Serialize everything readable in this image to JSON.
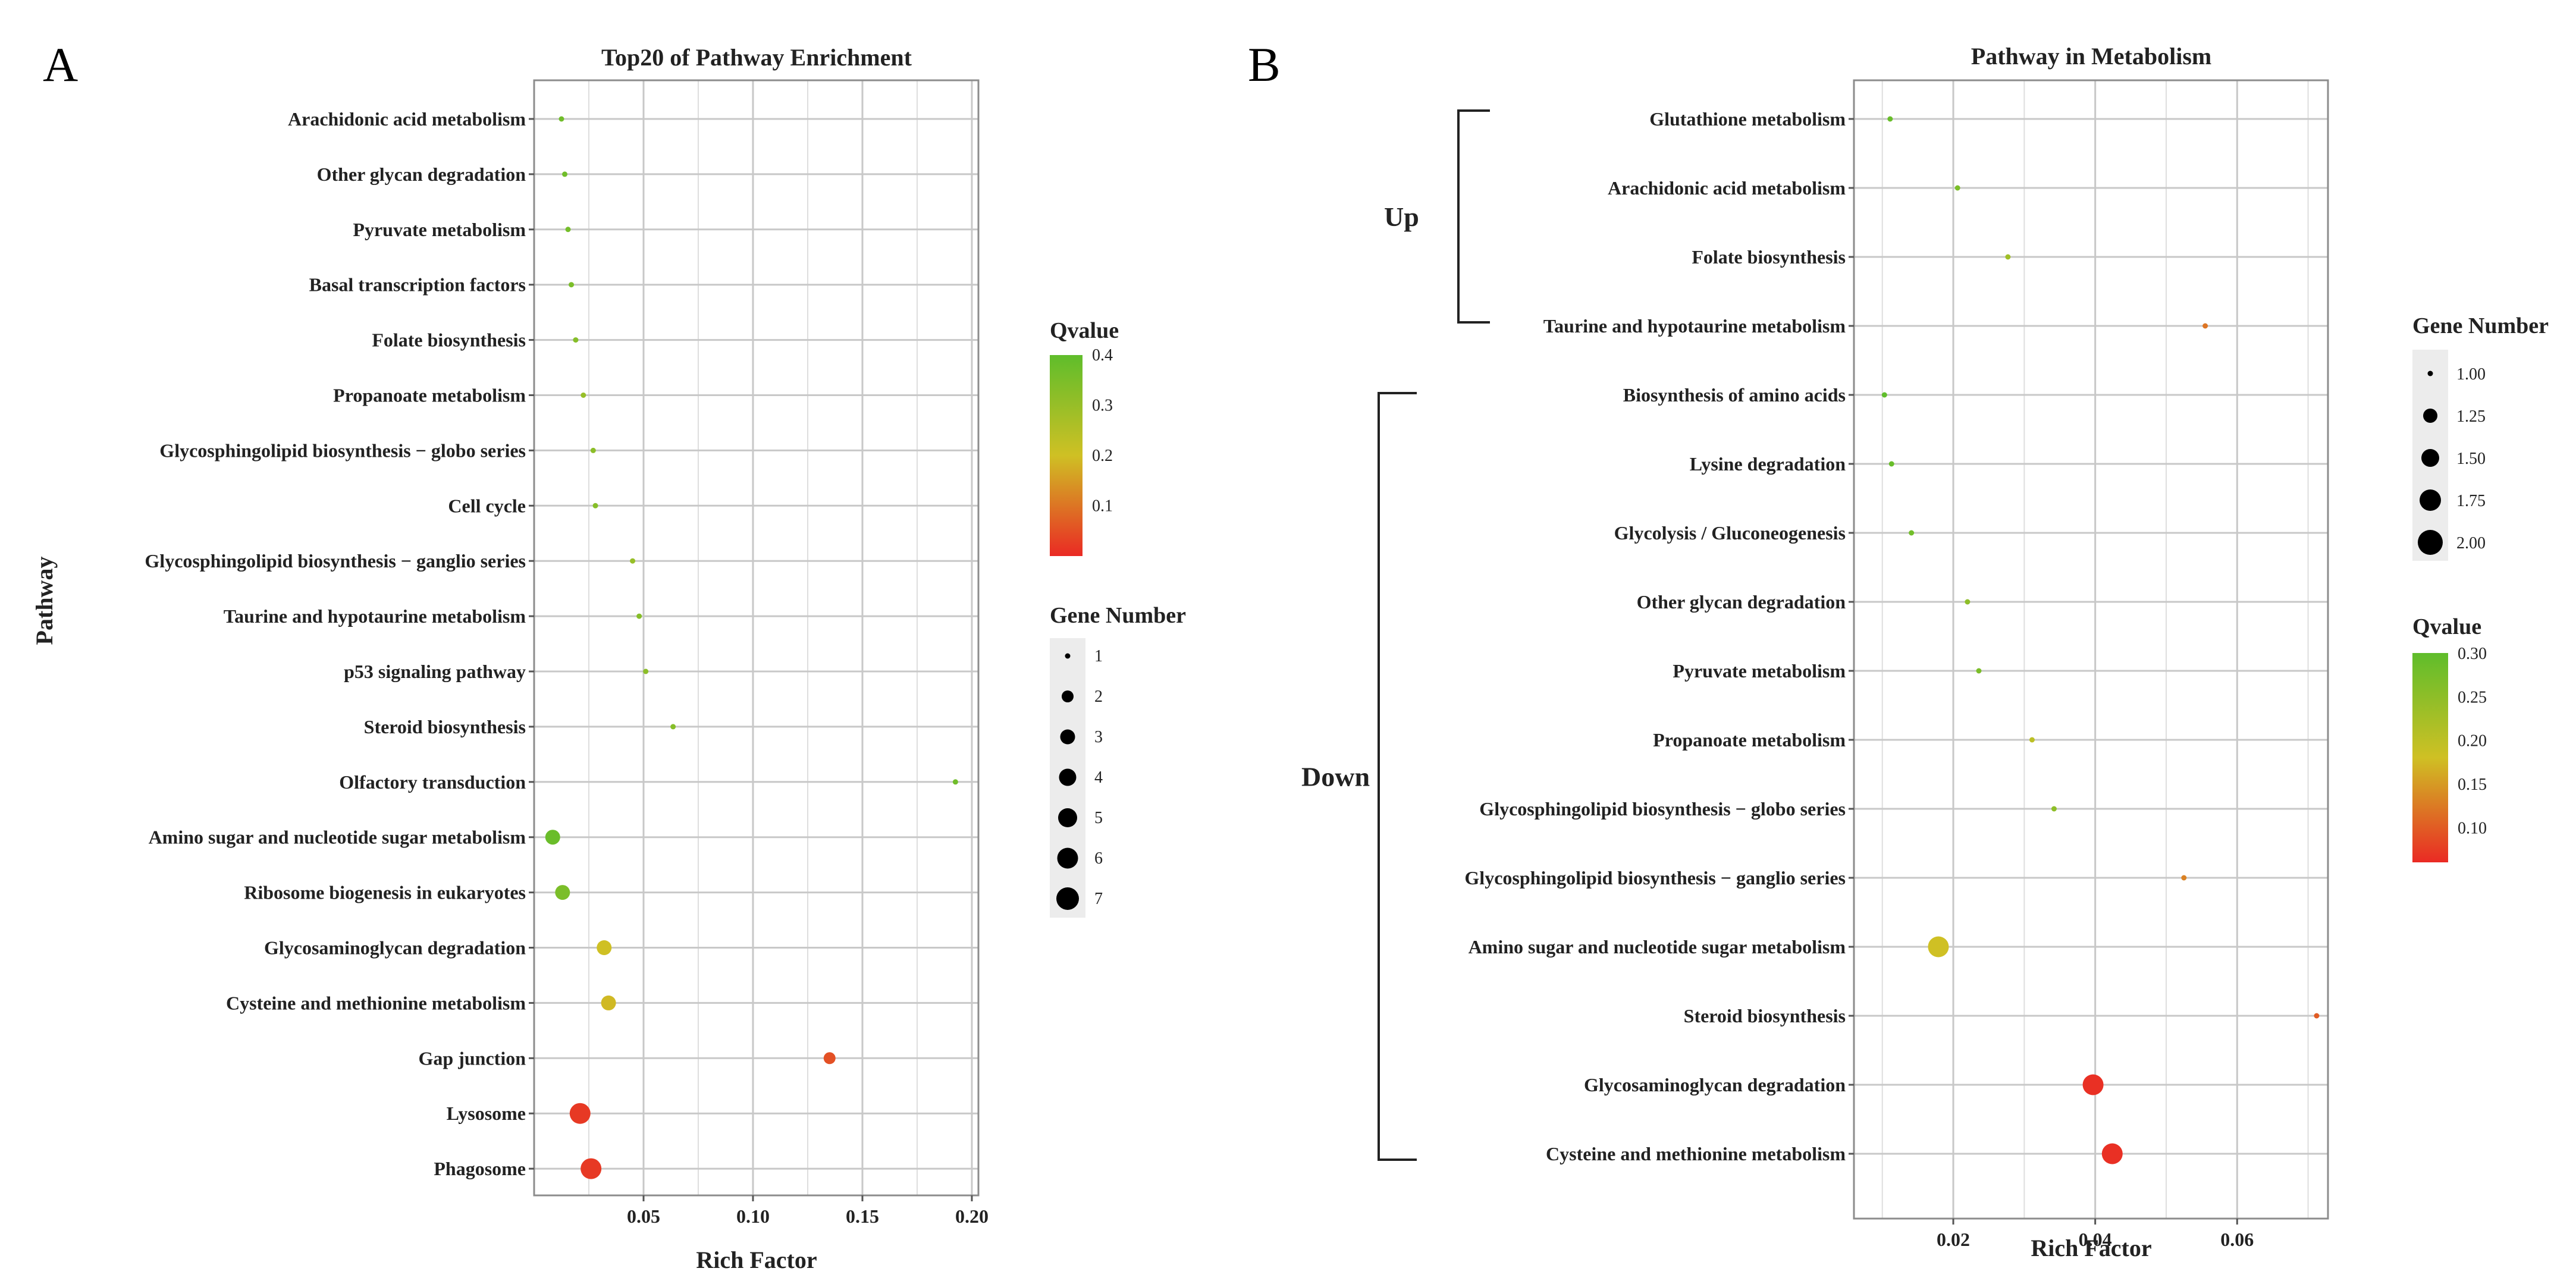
{
  "panel_labels": {
    "a": "A",
    "b": "B"
  },
  "colors": {
    "q_low": "#ea2a24",
    "q_mid": "#cfc024",
    "q_high": "#5fbd2b",
    "grid": "#c8c8c8",
    "frame": "#8c8c8c"
  },
  "chart_data": [
    {
      "id": "A",
      "type": "scatter",
      "title": "Top20 of Pathway Enrichment",
      "xlabel": "Rich Factor",
      "ylabel": "Pathway",
      "xlim": [
        0.0,
        0.203
      ],
      "xticks": [
        0.05,
        0.1,
        0.15,
        0.2
      ],
      "xtick_labels": [
        "0.05",
        "0.10",
        "0.15",
        "0.20"
      ],
      "grid": true,
      "color_legend": {
        "title": "Qvalue",
        "range": [
          0.0,
          0.4
        ],
        "ticks": [
          0.4,
          0.3,
          0.2,
          0.1
        ],
        "tick_labels": [
          "0.4",
          "0.3",
          "0.2",
          "0.1"
        ]
      },
      "size_legend": {
        "title": "Gene Number",
        "values": [
          1,
          2,
          3,
          4,
          5,
          6,
          7
        ],
        "labels": [
          "1",
          "2",
          "3",
          "4",
          "5",
          "6",
          "7"
        ]
      },
      "points": [
        {
          "pathway": "Arachidonic acid metabolism",
          "rich_factor": 0.0125,
          "gene_number": 1,
          "qvalue": 0.37
        },
        {
          "pathway": "Other glycan degradation",
          "rich_factor": 0.014,
          "gene_number": 1,
          "qvalue": 0.37
        },
        {
          "pathway": "Pyruvate metabolism",
          "rich_factor": 0.0155,
          "gene_number": 1,
          "qvalue": 0.36
        },
        {
          "pathway": "Basal transcription factors",
          "rich_factor": 0.017,
          "gene_number": 1,
          "qvalue": 0.35
        },
        {
          "pathway": "Folate biosynthesis",
          "rich_factor": 0.019,
          "gene_number": 1,
          "qvalue": 0.33
        },
        {
          "pathway": "Propanoate metabolism",
          "rich_factor": 0.0225,
          "gene_number": 1,
          "qvalue": 0.3
        },
        {
          "pathway": "Glycosphingolipid biosynthesis − globo series",
          "rich_factor": 0.027,
          "gene_number": 1,
          "qvalue": 0.32
        },
        {
          "pathway": "Cell cycle",
          "rich_factor": 0.028,
          "gene_number": 1,
          "qvalue": 0.33
        },
        {
          "pathway": "Glycosphingolipid biosynthesis − ganglio series",
          "rich_factor": 0.045,
          "gene_number": 1,
          "qvalue": 0.3
        },
        {
          "pathway": "Taurine and hypotaurine metabolism",
          "rich_factor": 0.048,
          "gene_number": 1,
          "qvalue": 0.33
        },
        {
          "pathway": "p53 signaling pathway",
          "rich_factor": 0.051,
          "gene_number": 1,
          "qvalue": 0.32
        },
        {
          "pathway": "Steroid biosynthesis",
          "rich_factor": 0.0635,
          "gene_number": 1,
          "qvalue": 0.33
        },
        {
          "pathway": "Olfactory transduction",
          "rich_factor": 0.1925,
          "gene_number": 1,
          "qvalue": 0.37
        },
        {
          "pathway": "Amino sugar and nucleotide sugar metabolism",
          "rich_factor": 0.0085,
          "gene_number": 3,
          "qvalue": 0.38
        },
        {
          "pathway": "Ribosome biogenesis in eukaryotes",
          "rich_factor": 0.013,
          "gene_number": 3,
          "qvalue": 0.35
        },
        {
          "pathway": "Glycosaminoglycan degradation",
          "rich_factor": 0.032,
          "gene_number": 3,
          "qvalue": 0.2
        },
        {
          "pathway": "Cysteine and methionine metabolism",
          "rich_factor": 0.034,
          "gene_number": 3,
          "qvalue": 0.19
        },
        {
          "pathway": "Gap junction",
          "rich_factor": 0.135,
          "gene_number": 2,
          "qvalue": 0.05
        },
        {
          "pathway": "Lysosome",
          "rich_factor": 0.021,
          "gene_number": 6,
          "qvalue": 0.02
        },
        {
          "pathway": "Phagosome",
          "rich_factor": 0.026,
          "gene_number": 6,
          "qvalue": 0.02
        }
      ]
    },
    {
      "id": "B",
      "type": "scatter",
      "title": "Pathway in Metabolism",
      "xlabel": "Rich Factor",
      "xlim": [
        0.006,
        0.0728
      ],
      "xticks": [
        0.02,
        0.04,
        0.06
      ],
      "xtick_labels": [
        "0.02",
        "0.04",
        "0.06"
      ],
      "grid": true,
      "groups": [
        {
          "label": "Up",
          "from": "Glutathione metabolism",
          "to": "Taurine and hypotaurine metabolism"
        },
        {
          "label": "Down",
          "from": "Biosynthesis of amino acids",
          "to": "Cysteine and methionine metabolism"
        }
      ],
      "size_legend": {
        "title": "Gene Number",
        "values": [
          1.0,
          1.25,
          1.5,
          1.75,
          2.0
        ],
        "labels": [
          "1.00",
          "1.25",
          "1.50",
          "1.75",
          "2.00"
        ]
      },
      "color_legend": {
        "title": "Qvalue",
        "range": [
          0.06,
          0.3
        ],
        "ticks": [
          0.3,
          0.25,
          0.2,
          0.15,
          0.1
        ],
        "tick_labels": [
          "0.30",
          "0.25",
          "0.20",
          "0.15",
          "0.10"
        ]
      },
      "points": [
        {
          "pathway": "Glutathione metabolism",
          "rich_factor": 0.0111,
          "gene_number": 1,
          "qvalue": 0.29
        },
        {
          "pathway": "Arachidonic acid metabolism",
          "rich_factor": 0.0206,
          "gene_number": 1,
          "qvalue": 0.27
        },
        {
          "pathway": "Folate biosynthesis",
          "rich_factor": 0.0277,
          "gene_number": 1,
          "qvalue": 0.23
        },
        {
          "pathway": "Taurine and hypotaurine metabolism",
          "rich_factor": 0.0555,
          "gene_number": 1,
          "qvalue": 0.12
        },
        {
          "pathway": "Biosynthesis of amino acids",
          "rich_factor": 0.0103,
          "gene_number": 1,
          "qvalue": 0.3
        },
        {
          "pathway": "Lysine degradation",
          "rich_factor": 0.0113,
          "gene_number": 1,
          "qvalue": 0.29
        },
        {
          "pathway": "Glycolysis / Gluconeogenesis",
          "rich_factor": 0.0141,
          "gene_number": 1,
          "qvalue": 0.28
        },
        {
          "pathway": "Other glycan degradation",
          "rich_factor": 0.022,
          "gene_number": 1,
          "qvalue": 0.25
        },
        {
          "pathway": "Pyruvate metabolism",
          "rich_factor": 0.0236,
          "gene_number": 1,
          "qvalue": 0.27
        },
        {
          "pathway": "Propanoate metabolism",
          "rich_factor": 0.0311,
          "gene_number": 1,
          "qvalue": 0.2
        },
        {
          "pathway": "Glycosphingolipid biosynthesis − globo series",
          "rich_factor": 0.0342,
          "gene_number": 1,
          "qvalue": 0.25
        },
        {
          "pathway": "Glycosphingolipid biosynthesis − ganglio series",
          "rich_factor": 0.0525,
          "gene_number": 1,
          "qvalue": 0.13
        },
        {
          "pathway": "Amino sugar and nucleotide sugar metabolism",
          "rich_factor": 0.0179,
          "gene_number": 2,
          "qvalue": 0.18
        },
        {
          "pathway": "Steroid biosynthesis",
          "rich_factor": 0.0712,
          "gene_number": 1,
          "qvalue": 0.1
        },
        {
          "pathway": "Glycosaminoglycan degradation",
          "rich_factor": 0.0397,
          "gene_number": 2,
          "qvalue": 0.065
        },
        {
          "pathway": "Cysteine and methionine metabolism",
          "rich_factor": 0.0424,
          "gene_number": 2,
          "qvalue": 0.065
        }
      ]
    }
  ]
}
